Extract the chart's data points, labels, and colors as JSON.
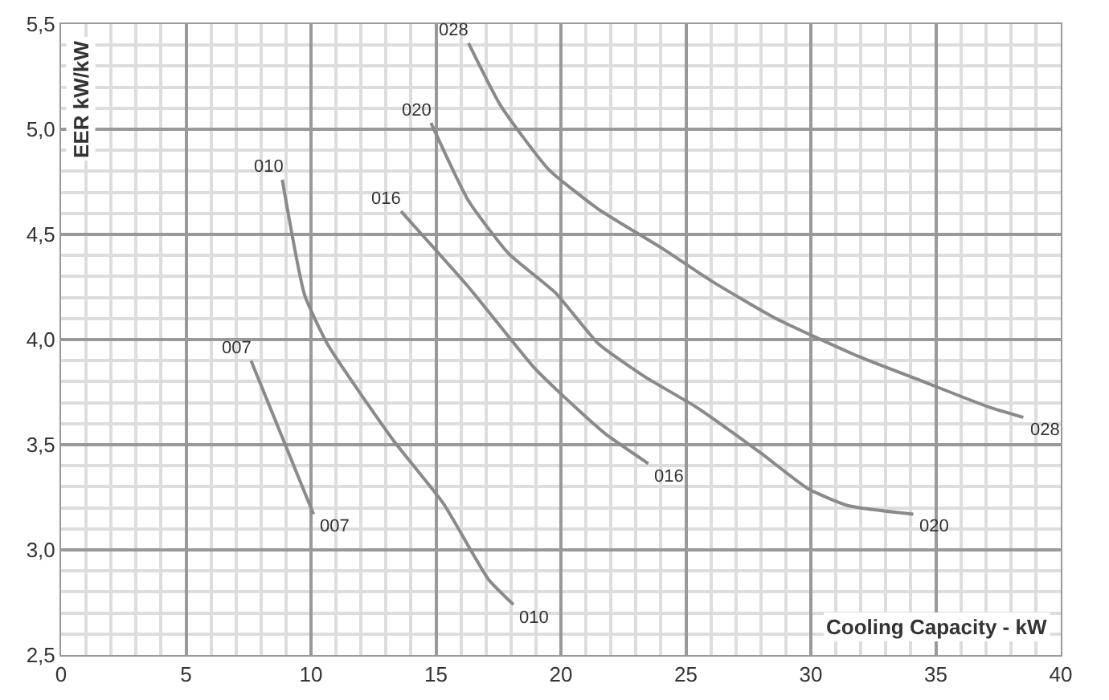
{
  "chart_data": {
    "type": "line",
    "xlabel": "Cooling Capacity - kW",
    "ylabel": "EER kW/kW",
    "xlim": [
      0,
      40
    ],
    "xticks": [
      0,
      5,
      10,
      15,
      20,
      25,
      30,
      35,
      40
    ],
    "ylim": [
      2.5,
      5.5
    ],
    "yticks": [
      {
        "value": 2.5,
        "label": "2,5"
      },
      {
        "value": 3.0,
        "label": "3,0"
      },
      {
        "value": 3.5,
        "label": "3,5"
      },
      {
        "value": 4.0,
        "label": "4,0"
      },
      {
        "value": 4.5,
        "label": "4,5"
      },
      {
        "value": 5.0,
        "label": "5,0"
      },
      {
        "value": 5.5,
        "label": "5,5"
      }
    ],
    "grid": true,
    "legend": false,
    "marker": "none",
    "line_style": "solid",
    "series": [
      {
        "name": "007",
        "color": "#8a8a8a",
        "x": [
          7.6,
          10.1
        ],
        "values": [
          3.9,
          3.17
        ]
      },
      {
        "name": "010",
        "color": "#8a8a8a",
        "x": [
          8.85,
          9.75,
          10.7,
          13.3,
          15.3,
          17.1,
          18.1
        ],
        "values": [
          4.76,
          4.21,
          3.97,
          3.52,
          3.22,
          2.86,
          2.74
        ]
      },
      {
        "name": "016",
        "color": "#8a8a8a",
        "x": [
          13.6,
          16.3,
          18.9,
          20.2,
          21.8,
          23.5
        ],
        "values": [
          4.61,
          4.25,
          3.87,
          3.72,
          3.55,
          3.41
        ]
      },
      {
        "name": "020",
        "color": "#8a8a8a",
        "x": [
          14.8,
          16.3,
          17.9,
          19.8,
          21.5,
          23.4,
          25.4,
          28.0,
          29.9,
          31.5,
          34.1
        ],
        "values": [
          5.03,
          4.66,
          4.41,
          4.22,
          3.98,
          3.82,
          3.68,
          3.46,
          3.29,
          3.21,
          3.17
        ]
      },
      {
        "name": "028",
        "color": "#8a8a8a",
        "x": [
          16.3,
          17.6,
          19.5,
          21.5,
          24.1,
          26.0,
          28.6,
          31.9,
          34.5,
          37.1,
          38.5
        ],
        "values": [
          5.41,
          5.11,
          4.81,
          4.62,
          4.43,
          4.28,
          4.1,
          3.92,
          3.8,
          3.68,
          3.63
        ]
      }
    ]
  }
}
